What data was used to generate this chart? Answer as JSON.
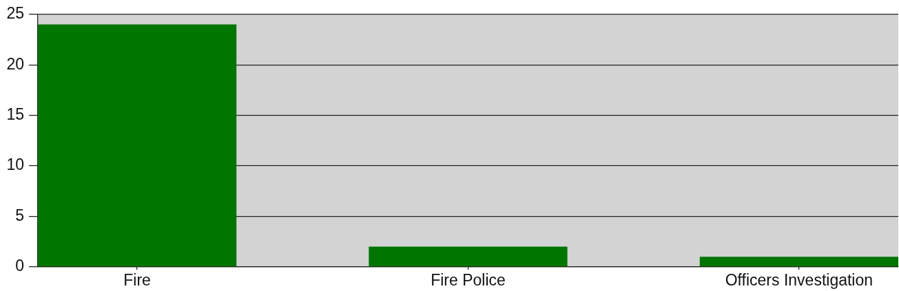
{
  "chart_data": {
    "type": "bar",
    "categories": [
      "Fire",
      "Fire Police",
      "Officers Investigation"
    ],
    "values": [
      24,
      2,
      1
    ],
    "color": "#007500",
    "ylim": [
      0,
      25
    ],
    "yticks": [
      0,
      5,
      10,
      15,
      20,
      25
    ],
    "grid": "y",
    "legend": false
  }
}
